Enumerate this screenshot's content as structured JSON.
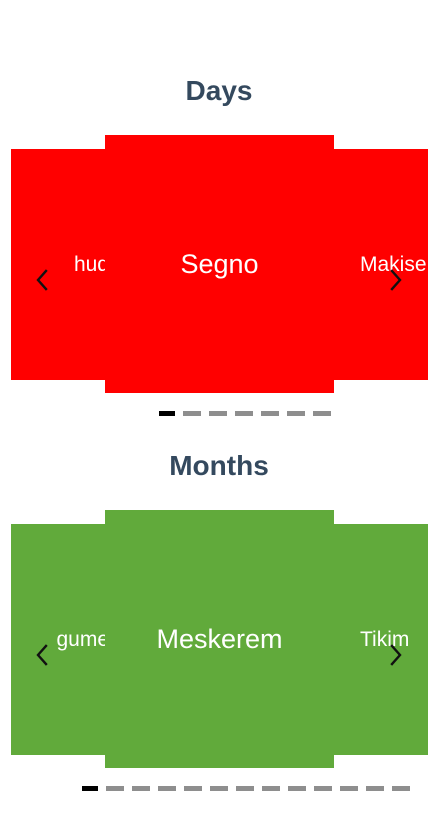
{
  "days": {
    "title": "Days",
    "color": "#ff0000",
    "slides": {
      "previous": "hud",
      "current": "Segno",
      "next": "Makise"
    },
    "pagination": {
      "total": 7,
      "active_index": 0
    }
  },
  "months": {
    "title": "Months",
    "color": "#61aa3b",
    "slides": {
      "previous": "gume",
      "current": "Meskerem",
      "next": "Tikim"
    },
    "pagination": {
      "total": 13,
      "active_index": 0
    }
  },
  "icons": {
    "previous": "chevron-left-icon",
    "next": "chevron-right-icon"
  }
}
